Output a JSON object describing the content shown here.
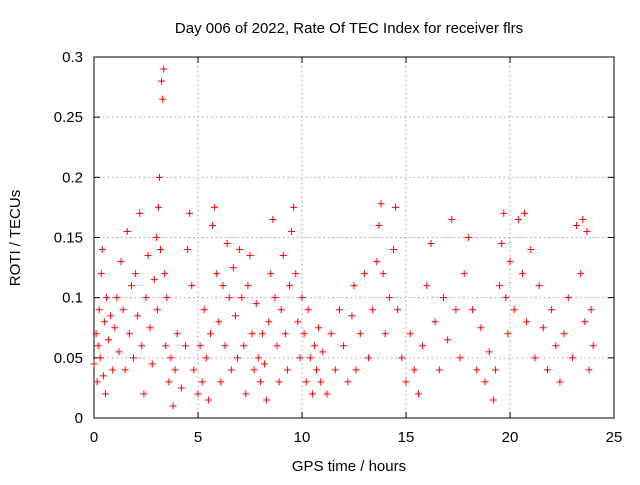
{
  "chart_data": {
    "type": "scatter",
    "title": "Day 006 of 2022, Rate Of TEC Index for receiver flrs",
    "xlabel": "GPS time / hours",
    "ylabel": "ROTI / TECUs",
    "xlim": [
      0,
      25
    ],
    "ylim": [
      0,
      0.3
    ],
    "x_ticks": [
      0,
      5,
      10,
      15,
      20,
      25
    ],
    "x_tick_labels": [
      "0",
      "5",
      "10",
      "15",
      "20",
      "25"
    ],
    "y_ticks": [
      0,
      0.05,
      0.1,
      0.15,
      0.2,
      0.25,
      0.3
    ],
    "y_tick_labels": [
      "0",
      "0.05",
      "0.1",
      "0.15",
      "0.2",
      "0.25",
      "0.3"
    ],
    "grid": true,
    "legend": "none",
    "marker": "+",
    "series": [
      {
        "color": "#ff0000",
        "points": [
          [
            0.0,
            0.045
          ],
          [
            0.1,
            0.07
          ],
          [
            0.15,
            0.03
          ],
          [
            0.2,
            0.06
          ],
          [
            0.25,
            0.09
          ],
          [
            0.3,
            0.05
          ],
          [
            0.35,
            0.12
          ],
          [
            0.4,
            0.14
          ],
          [
            0.45,
            0.035
          ],
          [
            0.5,
            0.08
          ],
          [
            0.55,
            0.02
          ],
          [
            0.6,
            0.1
          ],
          [
            0.7,
            0.065
          ],
          [
            0.8,
            0.085
          ],
          [
            0.9,
            0.04
          ],
          [
            1.0,
            0.075
          ],
          [
            1.1,
            0.1
          ],
          [
            1.2,
            0.055
          ],
          [
            1.3,
            0.13
          ],
          [
            1.4,
            0.09
          ],
          [
            1.5,
            0.04
          ],
          [
            1.6,
            0.155
          ],
          [
            1.7,
            0.07
          ],
          [
            1.8,
            0.11
          ],
          [
            1.9,
            0.05
          ],
          [
            2.0,
            0.12
          ],
          [
            2.1,
            0.085
          ],
          [
            2.2,
            0.17
          ],
          [
            2.3,
            0.06
          ],
          [
            2.4,
            0.02
          ],
          [
            2.5,
            0.1
          ],
          [
            2.6,
            0.135
          ],
          [
            2.7,
            0.075
          ],
          [
            2.8,
            0.045
          ],
          [
            2.9,
            0.115
          ],
          [
            3.0,
            0.15
          ],
          [
            3.05,
            0.09
          ],
          [
            3.1,
            0.175
          ],
          [
            3.15,
            0.2
          ],
          [
            3.2,
            0.14
          ],
          [
            3.25,
            0.28
          ],
          [
            3.3,
            0.265
          ],
          [
            3.35,
            0.29
          ],
          [
            3.4,
            0.12
          ],
          [
            3.45,
            0.06
          ],
          [
            3.5,
            0.1
          ],
          [
            3.6,
            0.03
          ],
          [
            3.7,
            0.05
          ],
          [
            3.8,
            0.01
          ],
          [
            3.9,
            0.04
          ],
          [
            4.0,
            0.07
          ],
          [
            4.2,
            0.025
          ],
          [
            4.4,
            0.06
          ],
          [
            4.5,
            0.14
          ],
          [
            4.6,
            0.17
          ],
          [
            4.7,
            0.11
          ],
          [
            4.8,
            0.04
          ],
          [
            5.0,
            0.02
          ],
          [
            5.1,
            0.06
          ],
          [
            5.2,
            0.03
          ],
          [
            5.3,
            0.09
          ],
          [
            5.4,
            0.05
          ],
          [
            5.5,
            0.015
          ],
          [
            5.6,
            0.07
          ],
          [
            5.7,
            0.16
          ],
          [
            5.8,
            0.175
          ],
          [
            5.9,
            0.12
          ],
          [
            6.0,
            0.08
          ],
          [
            6.1,
            0.03
          ],
          [
            6.2,
            0.11
          ],
          [
            6.3,
            0.06
          ],
          [
            6.4,
            0.145
          ],
          [
            6.5,
            0.1
          ],
          [
            6.6,
            0.04
          ],
          [
            6.7,
            0.125
          ],
          [
            6.8,
            0.085
          ],
          [
            6.9,
            0.05
          ],
          [
            7.0,
            0.14
          ],
          [
            7.1,
            0.1
          ],
          [
            7.2,
            0.06
          ],
          [
            7.3,
            0.02
          ],
          [
            7.4,
            0.11
          ],
          [
            7.5,
            0.135
          ],
          [
            7.6,
            0.07
          ],
          [
            7.7,
            0.04
          ],
          [
            7.8,
            0.095
          ],
          [
            7.9,
            0.05
          ],
          [
            8.0,
            0.03
          ],
          [
            8.1,
            0.07
          ],
          [
            8.2,
            0.045
          ],
          [
            8.3,
            0.015
          ],
          [
            8.4,
            0.08
          ],
          [
            8.5,
            0.12
          ],
          [
            8.6,
            0.165
          ],
          [
            8.7,
            0.1
          ],
          [
            8.8,
            0.06
          ],
          [
            8.9,
            0.03
          ],
          [
            9.0,
            0.09
          ],
          [
            9.1,
            0.135
          ],
          [
            9.2,
            0.07
          ],
          [
            9.3,
            0.04
          ],
          [
            9.4,
            0.11
          ],
          [
            9.5,
            0.155
          ],
          [
            9.6,
            0.175
          ],
          [
            9.7,
            0.12
          ],
          [
            9.8,
            0.08
          ],
          [
            9.9,
            0.05
          ],
          [
            10.0,
            0.1
          ],
          [
            10.1,
            0.07
          ],
          [
            10.2,
            0.03
          ],
          [
            10.3,
            0.09
          ],
          [
            10.4,
            0.05
          ],
          [
            10.5,
            0.02
          ],
          [
            10.6,
            0.06
          ],
          [
            10.7,
            0.04
          ],
          [
            10.8,
            0.075
          ],
          [
            10.9,
            0.03
          ],
          [
            11.0,
            0.055
          ],
          [
            11.2,
            0.02
          ],
          [
            11.4,
            0.07
          ],
          [
            11.6,
            0.04
          ],
          [
            11.8,
            0.09
          ],
          [
            12.0,
            0.06
          ],
          [
            12.2,
            0.03
          ],
          [
            12.4,
            0.085
          ],
          [
            12.5,
            0.11
          ],
          [
            12.6,
            0.04
          ],
          [
            12.8,
            0.07
          ],
          [
            13.0,
            0.12
          ],
          [
            13.2,
            0.05
          ],
          [
            13.4,
            0.09
          ],
          [
            13.6,
            0.13
          ],
          [
            13.7,
            0.16
          ],
          [
            13.8,
            0.178
          ],
          [
            13.9,
            0.12
          ],
          [
            14.0,
            0.07
          ],
          [
            14.2,
            0.1
          ],
          [
            14.4,
            0.14
          ],
          [
            14.5,
            0.175
          ],
          [
            14.6,
            0.09
          ],
          [
            14.8,
            0.05
          ],
          [
            15.0,
            0.03
          ],
          [
            15.2,
            0.07
          ],
          [
            15.4,
            0.04
          ],
          [
            15.6,
            0.02
          ],
          [
            15.8,
            0.06
          ],
          [
            16.0,
            0.11
          ],
          [
            16.2,
            0.145
          ],
          [
            16.4,
            0.08
          ],
          [
            16.6,
            0.04
          ],
          [
            16.8,
            0.1
          ],
          [
            17.0,
            0.065
          ],
          [
            17.2,
            0.165
          ],
          [
            17.4,
            0.09
          ],
          [
            17.6,
            0.05
          ],
          [
            17.8,
            0.12
          ],
          [
            18.0,
            0.15
          ],
          [
            18.2,
            0.09
          ],
          [
            18.4,
            0.04
          ],
          [
            18.6,
            0.075
          ],
          [
            18.8,
            0.03
          ],
          [
            19.0,
            0.055
          ],
          [
            19.2,
            0.015
          ],
          [
            19.3,
            0.04
          ],
          [
            19.5,
            0.11
          ],
          [
            19.6,
            0.145
          ],
          [
            19.7,
            0.17
          ],
          [
            19.8,
            0.1
          ],
          [
            19.9,
            0.07
          ],
          [
            20.0,
            0.13
          ],
          [
            20.2,
            0.09
          ],
          [
            20.4,
            0.165
          ],
          [
            20.6,
            0.12
          ],
          [
            20.7,
            0.17
          ],
          [
            20.8,
            0.08
          ],
          [
            21.0,
            0.14
          ],
          [
            21.2,
            0.05
          ],
          [
            21.4,
            0.11
          ],
          [
            21.6,
            0.075
          ],
          [
            21.8,
            0.04
          ],
          [
            22.0,
            0.09
          ],
          [
            22.2,
            0.06
          ],
          [
            22.4,
            0.03
          ],
          [
            22.6,
            0.07
          ],
          [
            22.8,
            0.1
          ],
          [
            23.0,
            0.05
          ],
          [
            23.2,
            0.16
          ],
          [
            23.4,
            0.12
          ],
          [
            23.5,
            0.165
          ],
          [
            23.6,
            0.08
          ],
          [
            23.7,
            0.155
          ],
          [
            23.8,
            0.04
          ],
          [
            23.9,
            0.09
          ],
          [
            24.0,
            0.06
          ]
        ]
      }
    ]
  }
}
